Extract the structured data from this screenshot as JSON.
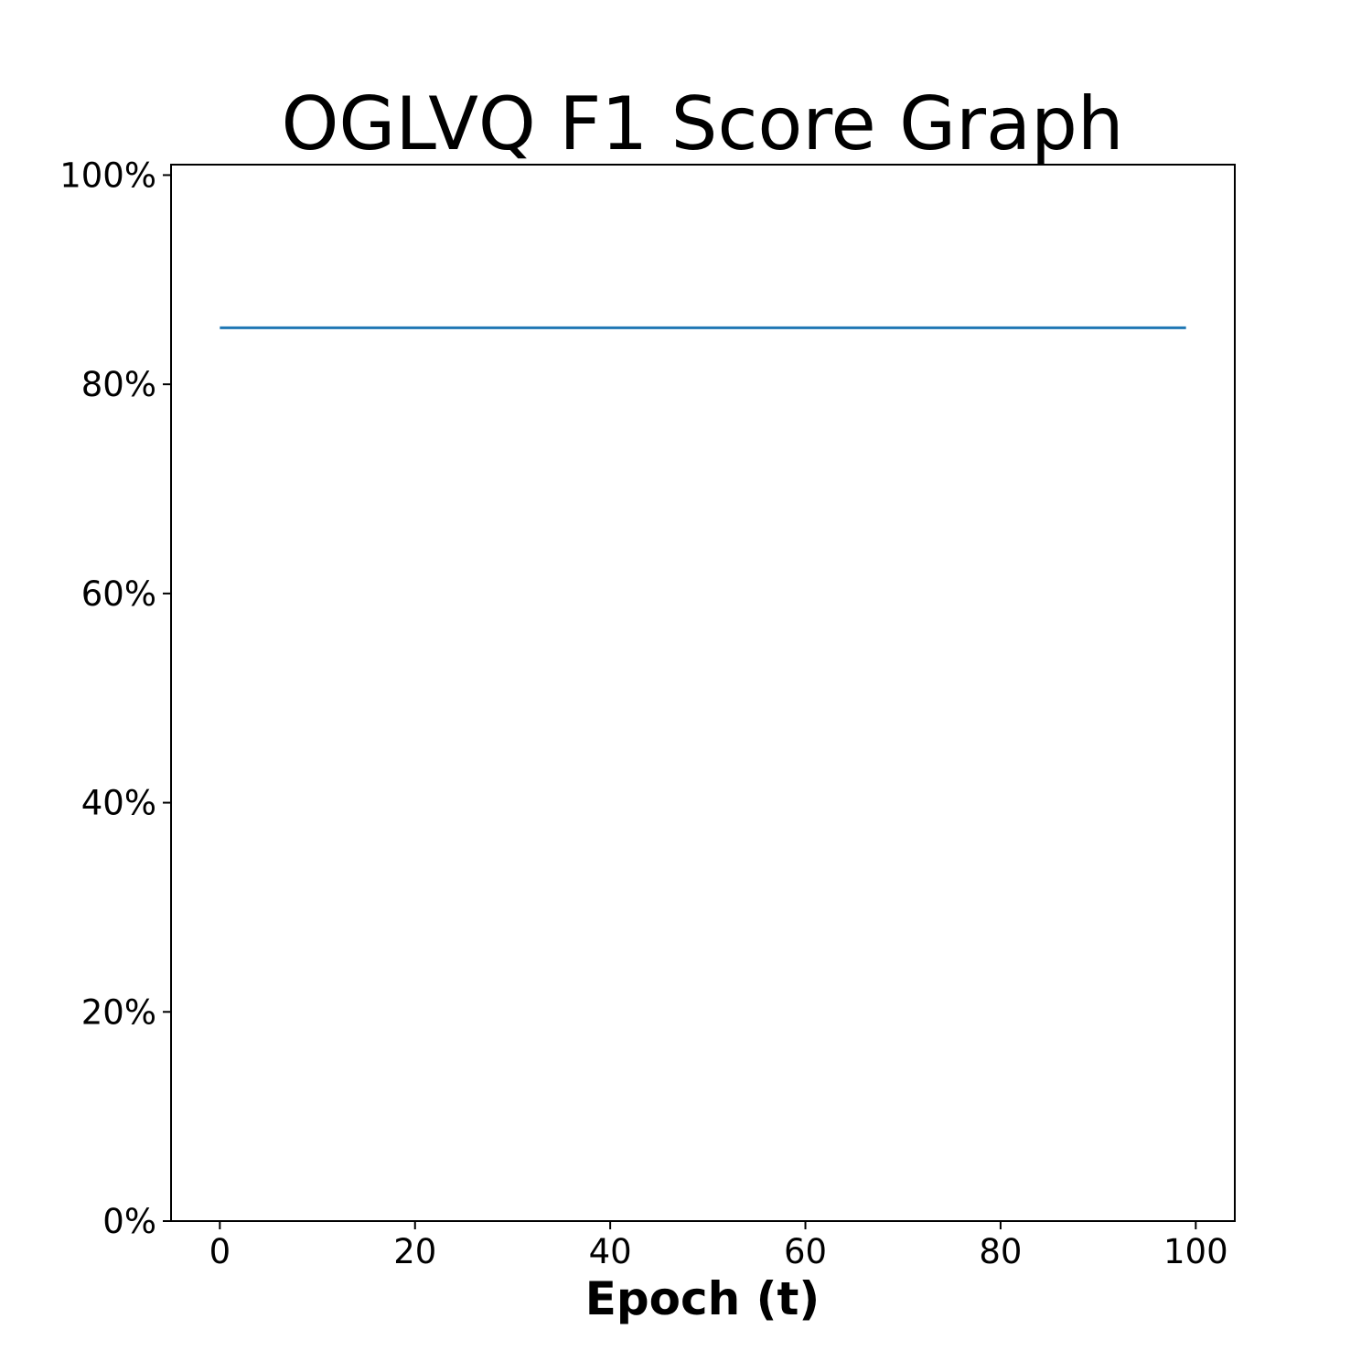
{
  "chart_data": {
    "type": "line",
    "title": "OGLVQ F1 Score Graph",
    "xlabel": "Epoch (t)",
    "ylabel": "",
    "xlim": [
      -5,
      104
    ],
    "ylim": [
      0,
      101
    ],
    "x_ticks": [
      0,
      20,
      40,
      60,
      80,
      100
    ],
    "x_tick_labels": [
      "0",
      "20",
      "40",
      "60",
      "80",
      "100"
    ],
    "y_ticks": [
      0,
      20,
      40,
      60,
      80,
      100
    ],
    "y_tick_labels": [
      "0%",
      "20%",
      "40%",
      "60%",
      "80%",
      "100%"
    ],
    "grid": false,
    "series": [
      {
        "name": "F1 Score",
        "color": "#1f77b4",
        "x_start": 0,
        "x_end": 99,
        "value": 85.4
      }
    ]
  }
}
